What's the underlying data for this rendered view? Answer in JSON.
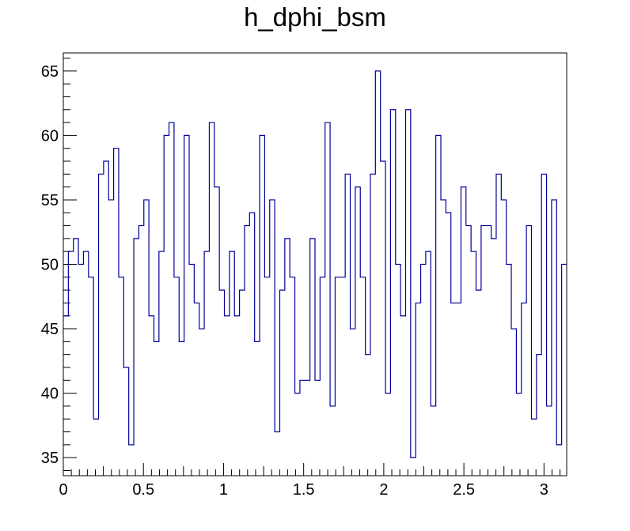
{
  "chart_data": {
    "type": "step",
    "title": "h_dphi_bsm",
    "xlabel": "",
    "ylabel": "",
    "xlim": [
      0,
      3.14159
    ],
    "ylim": [
      33.6,
      66.4
    ],
    "grid": false,
    "legend": "none",
    "line_color": "#000099",
    "x_ticks": [
      0,
      0.5,
      1,
      1.5,
      2,
      2.5,
      3
    ],
    "x_tick_labels": [
      "0",
      "0.5",
      "1",
      "1.5",
      "2",
      "2.5",
      "3"
    ],
    "y_ticks": [
      35,
      40,
      45,
      50,
      55,
      60,
      65
    ],
    "y_tick_labels": [
      "35",
      "40",
      "45",
      "50",
      "55",
      "60",
      "65"
    ],
    "bins": 100,
    "values": [
      46,
      51,
      52,
      50,
      51,
      49,
      38,
      57,
      58,
      55,
      59,
      49,
      42,
      36,
      52,
      53,
      55,
      46,
      44,
      51,
      60,
      61,
      49,
      44,
      60,
      50,
      47,
      45,
      51,
      61,
      56,
      48,
      46,
      51,
      46,
      48,
      53,
      54,
      44,
      60,
      49,
      55,
      37,
      48,
      52,
      49,
      40,
      41,
      41,
      52,
      41,
      49,
      61,
      39,
      49,
      49,
      57,
      45,
      56,
      49,
      43,
      57,
      65,
      58,
      40,
      62,
      50,
      46,
      62,
      35,
      47,
      50,
      51,
      39,
      60,
      55,
      54,
      47,
      47,
      56,
      53,
      51,
      48,
      53,
      53,
      52,
      57,
      55,
      50,
      45,
      40,
      47,
      53,
      38,
      43,
      57,
      39,
      55,
      36,
      50
    ]
  }
}
